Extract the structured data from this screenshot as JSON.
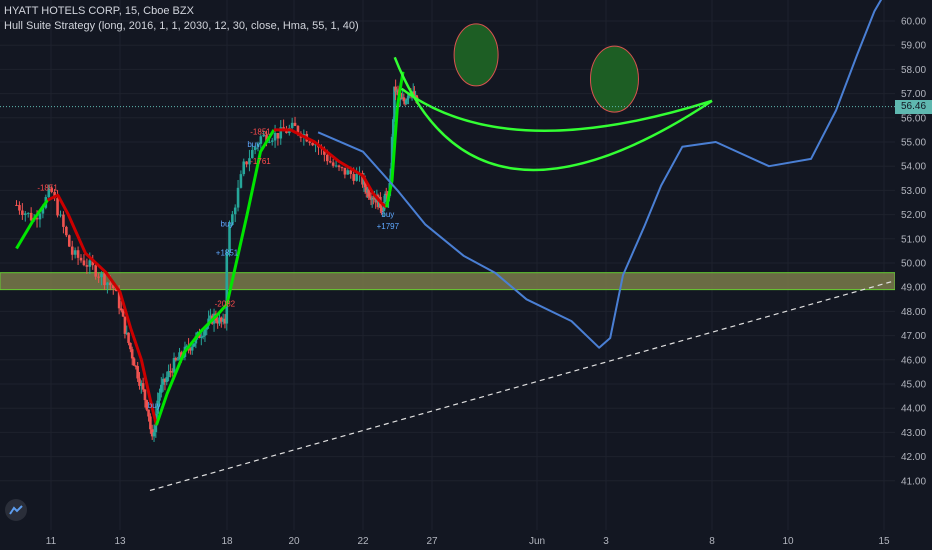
{
  "legend": {
    "title": "HYATT HOTELS CORP, 15, Cboe BZX",
    "indicator": "Hull Suite Strategy (long, 2016, 1, 1, 2030, 12, 30, close, Hma, 55, 1, 40)"
  },
  "last_price": "56.46",
  "colors": {
    "background": "#131722",
    "axis_text": "#b2b5be",
    "candle_up": "#26a69a",
    "candle_down": "#ef5350",
    "hull_up": "#00e600",
    "hull_down": "#cc0000",
    "projection": "#4a7fd4",
    "smile": "#33ff33",
    "eye_fill": "#1d5e24",
    "eye_stroke": "#d9534f",
    "zone_fill": "#7a7a4a",
    "zone_border": "#66cc33",
    "price_tag": "#5fb8b0"
  },
  "chart_data": {
    "type": "candlestick",
    "x_tick_labels": [
      "11",
      "13",
      "18",
      "20",
      "22",
      "27",
      "Jun",
      "3",
      "8",
      "10",
      "15"
    ],
    "y_ticks": [
      41,
      42,
      43,
      44,
      45,
      46,
      47,
      48,
      49,
      50,
      51,
      52,
      53,
      54,
      55,
      56,
      57,
      58,
      59,
      60
    ],
    "y_tick_labels": [
      "41.00",
      "42.00",
      "43.00",
      "44.00",
      "45.00",
      "46.00",
      "47.00",
      "48.00",
      "49.00",
      "50.00",
      "51.00",
      "52.00",
      "53.00",
      "54.00",
      "55.00",
      "56.00",
      "57.00",
      "58.00",
      "59.00",
      "60.00"
    ],
    "ylim": [
      40.4,
      60.7
    ],
    "last_price": 56.46,
    "support_zone": [
      48.9,
      49.6
    ],
    "signals": [
      {
        "label": "-1851",
        "day": 10.9,
        "price": 53.0,
        "side": "sell"
      },
      {
        "label": "buy",
        "day": 14.6,
        "price": 44.0,
        "side": "buy"
      },
      {
        "label": "-2082",
        "day": 17.9,
        "price": 48.2,
        "side": "sell"
      },
      {
        "label": "buy",
        "day": 18.0,
        "price": 51.5,
        "side": "buy"
      },
      {
        "label": "+1851",
        "day": 18.0,
        "price": 50.3,
        "side": "buy"
      },
      {
        "label": "-1851",
        "day": 19.0,
        "price": 55.3,
        "side": "sell"
      },
      {
        "label": "buy",
        "day": 18.8,
        "price": 54.8,
        "side": "buy"
      },
      {
        "label": "-1761",
        "day": 19.0,
        "price": 54.1,
        "side": "sell"
      },
      {
        "label": "buy",
        "day": 23.8,
        "price": 51.9,
        "side": "buy"
      },
      {
        "label": "+1797",
        "day": 23.8,
        "price": 51.4,
        "side": "buy"
      }
    ]
  }
}
